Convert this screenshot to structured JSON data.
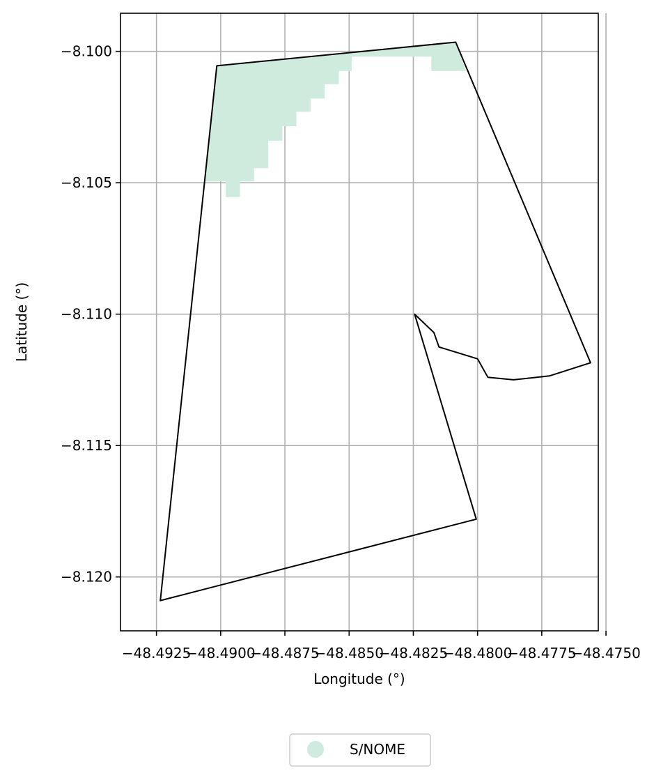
{
  "chart_data": {
    "type": "map",
    "title": "",
    "xlabel": "Longitude (°)",
    "ylabel": "Latitude (°)",
    "xlim": [
      -48.4939,
      -48.4753
    ],
    "ylim": [
      -8.12205,
      -8.09855
    ],
    "grid": true,
    "x_ticks": [
      {
        "value": -48.4925,
        "label": "−48.4925"
      },
      {
        "value": -48.49,
        "label": "−48.4900"
      },
      {
        "value": -48.4875,
        "label": "−48.4875"
      },
      {
        "value": -48.485,
        "label": "−48.4850"
      },
      {
        "value": -48.4825,
        "label": "−48.4825"
      },
      {
        "value": -48.48,
        "label": "−48.4800"
      },
      {
        "value": -48.4775,
        "label": "−48.4775"
      },
      {
        "value": -48.475,
        "label": "−48.4750"
      }
    ],
    "y_ticks": [
      {
        "value": -8.1,
        "label": "−8.100"
      },
      {
        "value": -8.105,
        "label": "−8.105"
      },
      {
        "value": -8.11,
        "label": "−8.110"
      },
      {
        "value": -8.115,
        "label": "−8.115"
      },
      {
        "value": -8.12,
        "label": "−8.120"
      }
    ],
    "boundary": {
      "stroke": "#000000",
      "points": [
        [
          -48.49235,
          -8.1209
        ],
        [
          -48.49015,
          -8.10055
        ],
        [
          -48.48085,
          -8.09965
        ],
        [
          -48.4756,
          -8.11185
        ],
        [
          -48.4772,
          -8.11235
        ],
        [
          -48.4786,
          -8.1125
        ],
        [
          -48.4796,
          -8.1124
        ],
        [
          -48.48,
          -8.1117
        ],
        [
          -48.4815,
          -8.11125
        ],
        [
          -48.4817,
          -8.1107
        ],
        [
          -48.48245,
          -8.11
        ],
        [
          -48.48005,
          -8.1178
        ]
      ]
    },
    "series": [
      {
        "name": "S/NOME",
        "color": "#ceebdd",
        "polygon": [
          [
            -48.49015,
            -8.10055
          ],
          [
            -48.48085,
            -8.09965
          ],
          [
            -48.48045,
            -8.10075
          ],
          [
            -48.4818,
            -8.10075
          ],
          [
            -48.4818,
            -8.1002
          ],
          [
            -48.4849,
            -8.1002
          ],
          [
            -48.4849,
            -8.10075
          ],
          [
            -48.4854,
            -8.10075
          ],
          [
            -48.4854,
            -8.10125
          ],
          [
            -48.48595,
            -8.10125
          ],
          [
            -48.48595,
            -8.1018
          ],
          [
            -48.4865,
            -8.1018
          ],
          [
            -48.4865,
            -8.1023
          ],
          [
            -48.48705,
            -8.1023
          ],
          [
            -48.48705,
            -8.10285
          ],
          [
            -48.4876,
            -8.10285
          ],
          [
            -48.4876,
            -8.1034
          ],
          [
            -48.48815,
            -8.1034
          ],
          [
            -48.48815,
            -8.10445
          ],
          [
            -48.4887,
            -8.10445
          ],
          [
            -48.4887,
            -8.10495
          ],
          [
            -48.48925,
            -8.10495
          ],
          [
            -48.48925,
            -8.10555
          ],
          [
            -48.4898,
            -8.10555
          ],
          [
            -48.4898,
            -8.10495
          ],
          [
            -48.49065,
            -8.10495
          ]
        ]
      }
    ],
    "legend": {
      "position": "bottom-center",
      "entries": [
        {
          "label": "S/NOME",
          "color": "#ceebdd",
          "marker": "circle"
        }
      ]
    }
  }
}
